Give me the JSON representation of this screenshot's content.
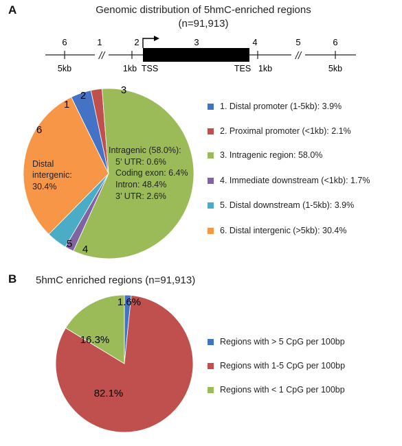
{
  "colors": {
    "blue": "#4472c4",
    "red": "#c0504d",
    "green": "#9bbb59",
    "purple": "#8064a2",
    "cyan": "#4bacc6",
    "orange": "#f79646"
  },
  "chart_data": [
    {
      "panel": "A",
      "type": "pie",
      "title": "Genomic distribution of 5hmC-enriched regions",
      "subtitle": "(n=91,913)",
      "slices": [
        {
          "id": "1",
          "label": "1. Distal promoter  (1-5kb): 3.9%",
          "value": 3.9,
          "color": "#4472c4"
        },
        {
          "id": "2",
          "label": "2. Proximal promoter (<1kb): 2.1%",
          "value": 2.1,
          "color": "#c0504d"
        },
        {
          "id": "3",
          "label": "3. Intragenic region:   58.0%",
          "value": 58.0,
          "color": "#9bbb59"
        },
        {
          "id": "4",
          "label": "4. Immediate downstream (<1kb): 1.7%",
          "value": 1.7,
          "color": "#8064a2"
        },
        {
          "id": "5",
          "label": "5. Distal downstream  (1-5kb): 3.9%",
          "value": 3.9,
          "color": "#4bacc6"
        },
        {
          "id": "6",
          "label": "6. Distal intergenic (>5kb): 30.4%",
          "value": 30.4,
          "color": "#f79646"
        }
      ],
      "annotations": {
        "intragenic": [
          "Intragenic (58.0%):",
          "5’ UTR: 0.6%",
          "Coding exon: 6.4%",
          "Intron: 48.4%",
          "3’ UTR: 2.6%"
        ],
        "distal": [
          "Distal",
          "intergenic:",
          "30.4%"
        ]
      },
      "gene_diagram": {
        "region_numbers": [
          "6",
          "1",
          "2",
          "3",
          "4",
          "5",
          "6"
        ],
        "labels": [
          "5kb",
          "1kb",
          "TSS",
          "TES",
          "1kb",
          "5kb"
        ],
        "break_marks": [
          "//",
          "//"
        ]
      }
    },
    {
      "panel": "B",
      "type": "pie",
      "title": "5hmC enriched regions (n=91,913)",
      "slices": [
        {
          "label": "Regions with > 5 CpG per 100bp",
          "value": 1.6,
          "text": "1.6%",
          "color": "#4472c4"
        },
        {
          "label": "Regions with 1-5 CpG per 100bp",
          "value": 82.1,
          "text": "82.1%",
          "color": "#c0504d"
        },
        {
          "label": "Regions with < 1 CpG per 100bp",
          "value": 16.3,
          "text": "16.3%",
          "color": "#9bbb59"
        }
      ]
    }
  ]
}
